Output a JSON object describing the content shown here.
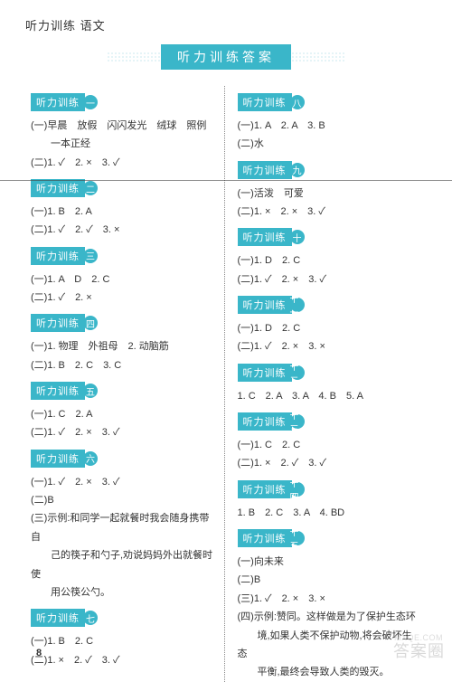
{
  "page_title": "听力训练 语文",
  "banner": "听力训练答案",
  "page_number": "8",
  "watermark": "答案圈",
  "watermark_sub": "MXQE.COM",
  "colors": {
    "accent": "#3ab6c9",
    "text": "#333333",
    "background": "#ffffff",
    "dots": "#6cc3d1",
    "divider": "#888888",
    "watermark": "#bbbbbb"
  },
  "sh_label": "听力训练",
  "left_sections": [
    {
      "num": "一",
      "lines": [
        "(一)早晨　放假　闪闪发光　绒球　照例",
        "　　一本正经",
        "(二)1. ✓　2. ×　3. ✓"
      ]
    },
    {
      "num": "二",
      "lines": [
        "(一)1. B　2. A",
        "(二)1. ✓　2. ✓　3. ×"
      ]
    },
    {
      "num": "三",
      "lines": [
        "(一)1. A　D　2. C",
        "(二)1. ✓　2. ×"
      ]
    },
    {
      "num": "四",
      "lines": [
        "(一)1. 物理　外祖母　2. 动脑筋",
        "(二)1. B　2. C　3. C"
      ]
    },
    {
      "num": "五",
      "lines": [
        "(一)1. C　2. A",
        "(二)1. ✓　2. ×　3. ✓"
      ]
    },
    {
      "num": "六",
      "lines": [
        "(一)1. ✓　2. ×　3. ✓",
        "(二)B",
        "(三)示例:和同学一起就餐时我会随身携带自",
        "　　己的筷子和勺子,劝说妈妈外出就餐时使",
        "　　用公筷公勺。"
      ]
    },
    {
      "num": "七",
      "lines": [
        "(一)1. B　2. C",
        "(二)1. ×　2. ✓　3. ✓"
      ]
    }
  ],
  "right_sections": [
    {
      "num": "八",
      "lines": [
        "(一)1. A　2. A　3. B",
        "(二)水"
      ]
    },
    {
      "num": "九",
      "lines": [
        "(一)活泼　可爱",
        "(二)1. ×　2. ×　3. ✓"
      ]
    },
    {
      "num": "十",
      "lines": [
        "(一)1. D　2. C",
        "(二)1. ✓　2. ×　3. ✓"
      ]
    },
    {
      "num": "十一",
      "lines": [
        "(一)1. D　2. C",
        "(二)1. ✓　2. ×　3. ×"
      ]
    },
    {
      "num": "十二",
      "lines": [
        "1. C　2. A　3. A　4. B　5. A"
      ]
    },
    {
      "num": "十三",
      "lines": [
        "(一)1. C　2. C",
        "(二)1. ×　2. ✓　3. ✓"
      ]
    },
    {
      "num": "十四",
      "lines": [
        "1. B　2. C　3. A　4. BD"
      ]
    },
    {
      "num": "十五",
      "lines": [
        "(一)向未来",
        "(二)B",
        "(三)1. ✓　2. ×　3. ×",
        "(四)示例:赞同。这样做是为了保护生态环",
        "　　境,如果人类不保护动物,将会破坏生态",
        "　　平衡,最终会导致人类的毁灭。"
      ]
    }
  ]
}
